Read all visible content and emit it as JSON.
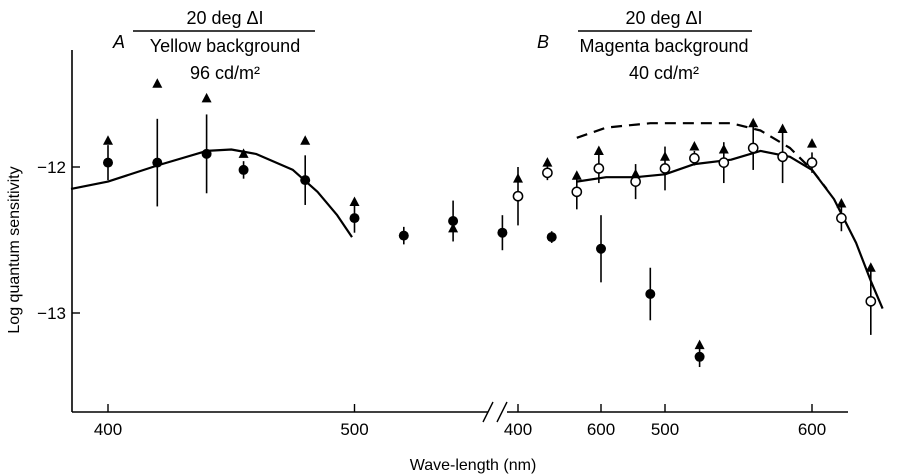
{
  "chart_data": {
    "type": "scatter",
    "ylabel": "Log quantum sensitivity",
    "xlabel": "Wave-length (nm)",
    "ylim": [
      -13.55,
      -11.2
    ],
    "yticks": [
      {
        "value": -12,
        "label": "−12"
      },
      {
        "value": -13,
        "label": "−13"
      }
    ],
    "grid": false,
    "panels": [
      {
        "letter": "A",
        "title_top": "20 deg ΔI",
        "title_bottom": "Yellow background",
        "title_luminance": "96 cd/m²",
        "xlim": [
          385,
          650
        ],
        "xticks": [
          {
            "value": 400,
            "label": "400"
          },
          {
            "value": 500,
            "label": "500"
          },
          {
            "value": 600,
            "label": "600"
          }
        ],
        "series": [
          {
            "marker": "filled-circle",
            "points": [
              {
                "x": 400,
                "y": -11.97,
                "err": 0.12
              },
              {
                "x": 420,
                "y": -11.97,
                "err": 0.3
              },
              {
                "x": 440,
                "y": -11.91,
                "err": 0.27
              },
              {
                "x": 455,
                "y": -12.02,
                "err": 0.06
              },
              {
                "x": 480,
                "y": -12.09,
                "err": 0.17
              },
              {
                "x": 500,
                "y": -12.35,
                "err": 0.1
              },
              {
                "x": 520,
                "y": -12.47,
                "err": 0.06
              },
              {
                "x": 540,
                "y": -12.37,
                "err": 0.14
              },
              {
                "x": 560,
                "y": -12.45,
                "err": 0.12
              },
              {
                "x": 580,
                "y": -12.48,
                "err": 0.04
              },
              {
                "x": 600,
                "y": -12.56,
                "err": 0.23
              },
              {
                "x": 620,
                "y": -12.87,
                "err": 0.18
              },
              {
                "x": 640,
                "y": -13.3,
                "err": 0.07
              }
            ]
          },
          {
            "marker": "filled-triangle",
            "points": [
              {
                "x": 400,
                "y": -11.82
              },
              {
                "x": 420,
                "y": -11.43
              },
              {
                "x": 440,
                "y": -11.53
              },
              {
                "x": 455,
                "y": -11.91
              },
              {
                "x": 480,
                "y": -11.82
              },
              {
                "x": 500,
                "y": -12.24
              },
              {
                "x": 540,
                "y": -12.42
              },
              {
                "x": 640,
                "y": -13.22
              }
            ]
          }
        ],
        "curves": [
          {
            "style": "solid",
            "points": [
              [
                385,
                -12.15
              ],
              [
                400,
                -12.1
              ],
              [
                420,
                -11.99
              ],
              [
                440,
                -11.89
              ],
              [
                450,
                -11.88
              ],
              [
                460,
                -11.91
              ],
              [
                475,
                -12.02
              ],
              [
                485,
                -12.17
              ],
              [
                493,
                -12.33
              ],
              [
                499,
                -12.48
              ]
            ]
          }
        ]
      },
      {
        "letter": "B",
        "title_top": "20 deg ΔI",
        "title_bottom": "Magenta background",
        "title_luminance": "40 cd/m²",
        "xlim": [
          395,
          650
        ],
        "xticks": [
          {
            "value": 400,
            "label": "400"
          },
          {
            "value": 500,
            "label": "500"
          },
          {
            "value": 600,
            "label": "600"
          }
        ],
        "series": [
          {
            "marker": "open-circle",
            "points": [
              {
                "x": 400,
                "y": -12.2,
                "err": 0.2
              },
              {
                "x": 420,
                "y": -12.04,
                "err": 0.05
              },
              {
                "x": 440,
                "y": -12.17,
                "err": 0.12
              },
              {
                "x": 455,
                "y": -12.01,
                "err": 0.1
              },
              {
                "x": 480,
                "y": -12.1,
                "err": 0.12
              },
              {
                "x": 500,
                "y": -12.01,
                "err": 0.15
              },
              {
                "x": 520,
                "y": -11.94,
                "err": 0.05
              },
              {
                "x": 540,
                "y": -11.97,
                "err": 0.14
              },
              {
                "x": 560,
                "y": -11.87,
                "err": 0.15
              },
              {
                "x": 580,
                "y": -11.93,
                "err": 0.18
              },
              {
                "x": 600,
                "y": -11.97,
                "err": 0.07
              },
              {
                "x": 620,
                "y": -12.35,
                "err": 0.09
              },
              {
                "x": 640,
                "y": -12.92,
                "err": 0.23
              }
            ]
          },
          {
            "marker": "filled-triangle",
            "points": [
              {
                "x": 400,
                "y": -12.08
              },
              {
                "x": 420,
                "y": -11.97
              },
              {
                "x": 440,
                "y": -12.06
              },
              {
                "x": 455,
                "y": -11.89
              },
              {
                "x": 480,
                "y": -12.05
              },
              {
                "x": 500,
                "y": -11.93
              },
              {
                "x": 520,
                "y": -11.86
              },
              {
                "x": 540,
                "y": -11.88
              },
              {
                "x": 560,
                "y": -11.7
              },
              {
                "x": 580,
                "y": -11.74
              },
              {
                "x": 600,
                "y": -11.84
              },
              {
                "x": 620,
                "y": -12.25
              },
              {
                "x": 640,
                "y": -12.69
              }
            ]
          }
        ],
        "curves": [
          {
            "style": "solid",
            "points": [
              [
                440,
                -12.1
              ],
              [
                460,
                -12.07
              ],
              [
                480,
                -12.07
              ],
              [
                500,
                -12.05
              ],
              [
                520,
                -11.98
              ],
              [
                545,
                -11.95
              ],
              [
                565,
                -11.89
              ],
              [
                585,
                -11.93
              ],
              [
                600,
                -12.02
              ],
              [
                615,
                -12.22
              ],
              [
                630,
                -12.52
              ],
              [
                640,
                -12.78
              ],
              [
                648,
                -12.97
              ]
            ]
          },
          {
            "style": "dashed",
            "points": [
              [
                440,
                -11.8
              ],
              [
                460,
                -11.73
              ],
              [
                490,
                -11.7
              ],
              [
                520,
                -11.7
              ],
              [
                545,
                -11.7
              ],
              [
                565,
                -11.75
              ],
              [
                585,
                -11.87
              ],
              [
                600,
                -12.02
              ],
              [
                610,
                -12.15
              ]
            ]
          }
        ]
      }
    ]
  }
}
